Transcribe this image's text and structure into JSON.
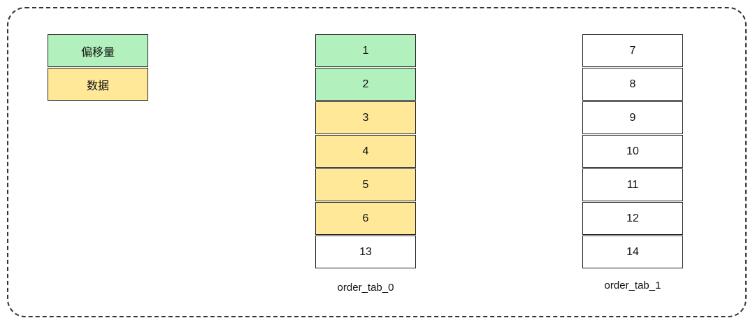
{
  "legend": [
    {
      "label": "偏移量",
      "color": "#b2f0bd"
    },
    {
      "label": "数据",
      "color": "#ffe999"
    }
  ],
  "tables": [
    {
      "name": "order_tab_0",
      "cells": [
        {
          "value": "1",
          "type": "offset"
        },
        {
          "value": "2",
          "type": "offset"
        },
        {
          "value": "3",
          "type": "data"
        },
        {
          "value": "4",
          "type": "data"
        },
        {
          "value": "5",
          "type": "data"
        },
        {
          "value": "6",
          "type": "data"
        },
        {
          "value": "13",
          "type": "none"
        }
      ]
    },
    {
      "name": "order_tab_1",
      "cells": [
        {
          "value": "7",
          "type": "none"
        },
        {
          "value": "8",
          "type": "none"
        },
        {
          "value": "9",
          "type": "none"
        },
        {
          "value": "10",
          "type": "none"
        },
        {
          "value": "11",
          "type": "none"
        },
        {
          "value": "12",
          "type": "none"
        },
        {
          "value": "14",
          "type": "none"
        }
      ]
    }
  ],
  "colors": {
    "offset": "#b2f0bd",
    "data": "#ffe999",
    "none": "#ffffff"
  }
}
